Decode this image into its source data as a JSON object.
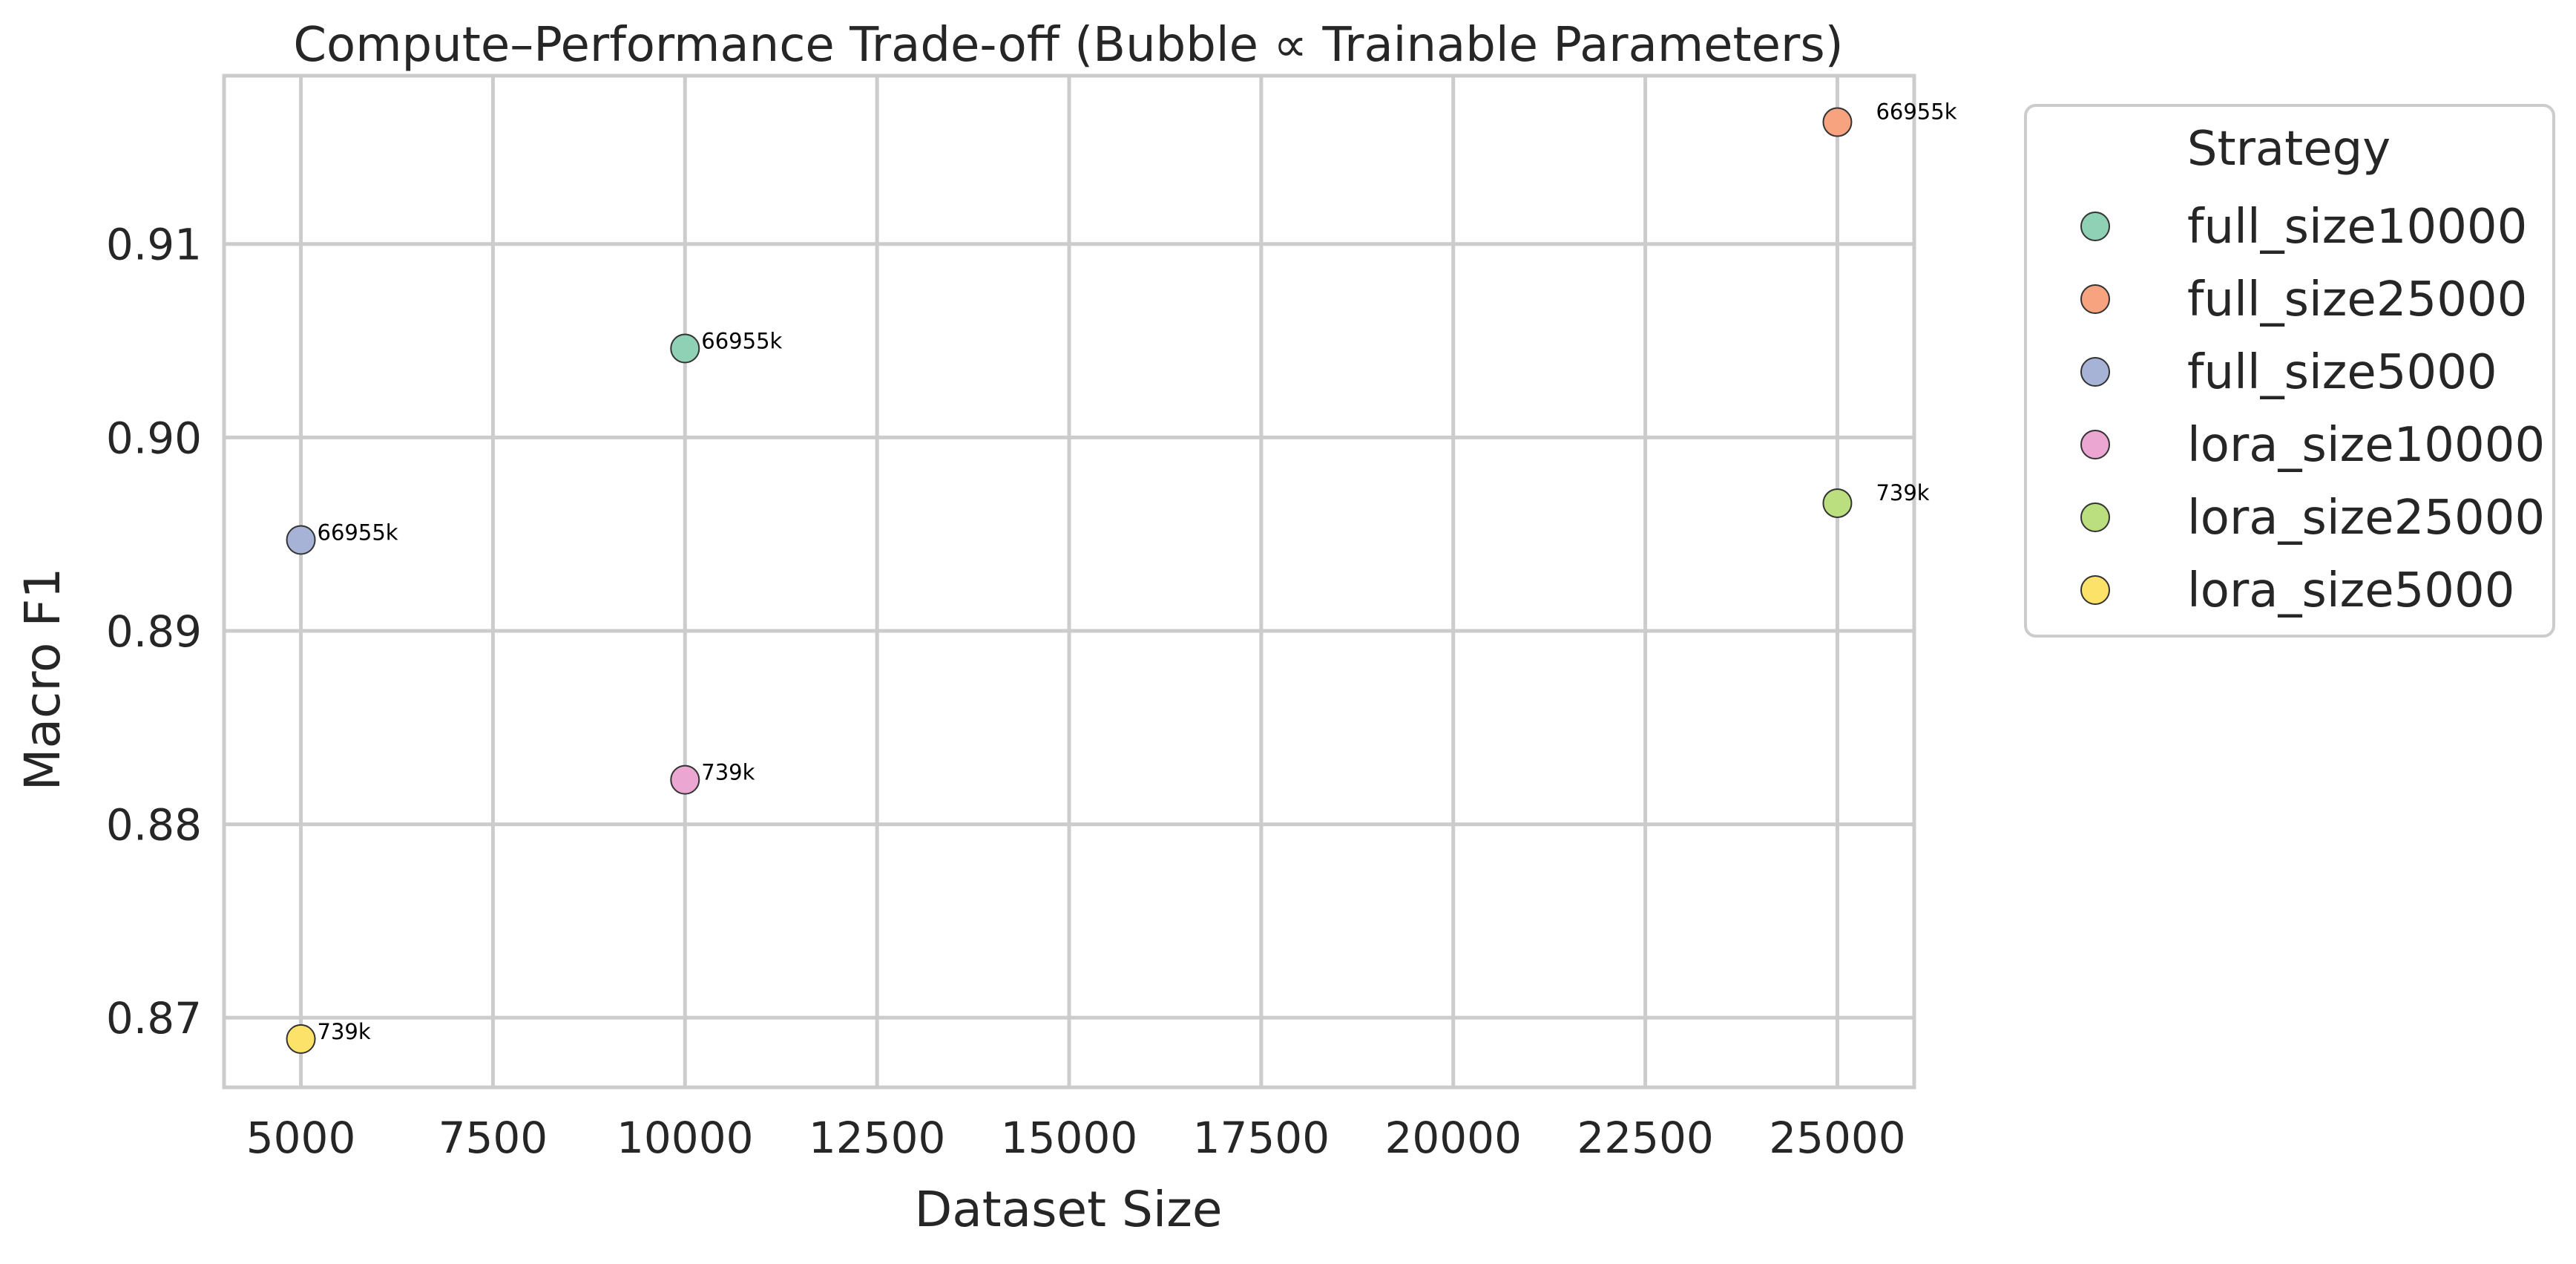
{
  "chart_data": {
    "type": "scatter",
    "title": "Compute–Performance Trade-off (Bubble ∝ Trainable Parameters)",
    "xlabel": "Dataset Size",
    "ylabel": "Macro F1",
    "xlim": [
      4000,
      26000
    ],
    "ylim": [
      0.8664,
      0.9187
    ],
    "xticks": [
      5000,
      7500,
      10000,
      12500,
      15000,
      17500,
      20000,
      22500,
      25000
    ],
    "xtick_labels": [
      "5000",
      "7500",
      "10000",
      "12500",
      "15000",
      "17500",
      "20000",
      "22500",
      "25000"
    ],
    "yticks": [
      0.87,
      0.88,
      0.89,
      0.9,
      0.91
    ],
    "ytick_labels": [
      "0.87",
      "0.88",
      "0.89",
      "0.90",
      "0.91"
    ],
    "grid": true,
    "legend": {
      "title": "Strategy",
      "placement": "outside-right"
    },
    "series": [
      {
        "name": "full_size10000",
        "color": "#8fd1b4",
        "x": 10000,
        "y": 0.9046,
        "label": "66955k"
      },
      {
        "name": "full_size25000",
        "color": "#f7a37f",
        "x": 25000,
        "y": 0.9163,
        "label": "66955k"
      },
      {
        "name": "full_size5000",
        "color": "#a6b3d6",
        "x": 5000,
        "y": 0.8947,
        "label": "66955k"
      },
      {
        "name": "lora_size10000",
        "color": "#eba6d1",
        "x": 10000,
        "y": 0.8823,
        "label": "739k"
      },
      {
        "name": "lora_size25000",
        "color": "#bbdf7f",
        "x": 25000,
        "y": 0.8966,
        "label": "739k"
      },
      {
        "name": "lora_size5000",
        "color": "#fde26a",
        "x": 5000,
        "y": 0.8689,
        "label": "739k"
      }
    ]
  }
}
